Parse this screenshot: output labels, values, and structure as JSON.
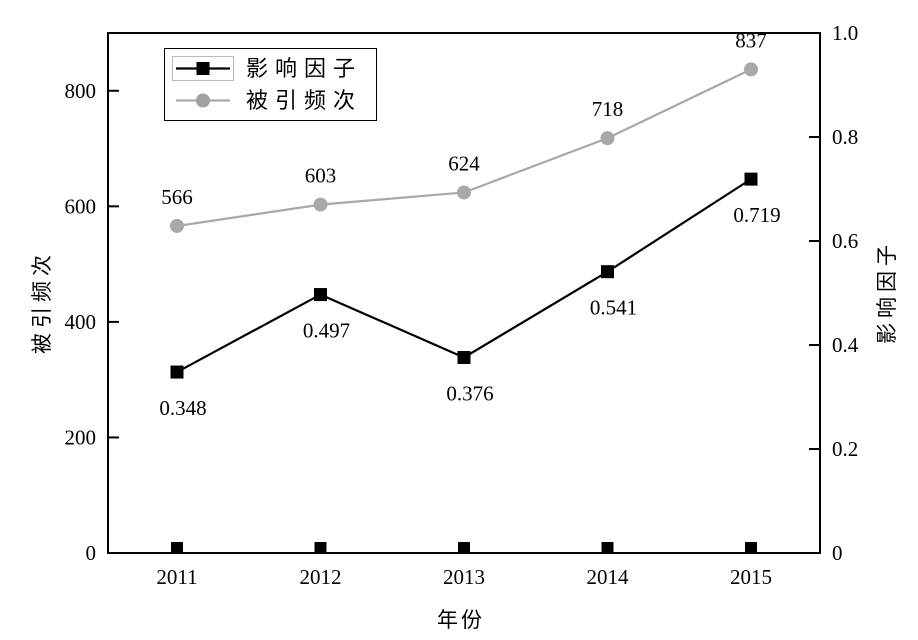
{
  "chart_data": {
    "type": "line",
    "x": [
      "2011",
      "2012",
      "2013",
      "2014",
      "2015"
    ],
    "xlabel": "年份",
    "left_axis": {
      "label": "被引频次",
      "tick_values": [
        0,
        200,
        400,
        600,
        800
      ],
      "tick_labels": [
        "0",
        "200",
        "400",
        "600",
        "800"
      ],
      "range": [
        0,
        900
      ]
    },
    "right_axis": {
      "label": "影响因子",
      "tick_values": [
        0,
        0.2,
        0.4,
        0.6,
        0.8,
        1.0
      ],
      "tick_labels": [
        "0",
        "0.2",
        "0.4",
        "0.6",
        "0.8",
        "1.0"
      ],
      "range": [
        0,
        1.0
      ]
    },
    "series": [
      {
        "name": "影响因子",
        "axis": "right",
        "color": "#000000",
        "marker": "square",
        "values": [
          0.348,
          0.497,
          0.376,
          0.541,
          0.719
        ],
        "point_labels": [
          "0.348",
          "0.497",
          "0.376",
          "0.541",
          "0.719"
        ],
        "label_position": "below"
      },
      {
        "name": "被引频次",
        "axis": "left",
        "color": "#a8a8a8",
        "marker": "circle",
        "values": [
          566,
          603,
          624,
          718,
          837
        ],
        "point_labels": [
          "566",
          "603",
          "624",
          "718",
          "837"
        ],
        "label_position": "above"
      }
    ],
    "baseline_markers": {
      "show": true,
      "color": "#000000",
      "note": "small black squares sitting on the x-axis at each year"
    },
    "legend_position": "top-left",
    "grid": false,
    "frame_color": "#000000"
  },
  "legend": {
    "items": [
      {
        "label": "影响因子",
        "marker": "square",
        "color": "#000000"
      },
      {
        "label": "被引频次",
        "marker": "circle",
        "color": "#a8a8a8"
      }
    ]
  }
}
